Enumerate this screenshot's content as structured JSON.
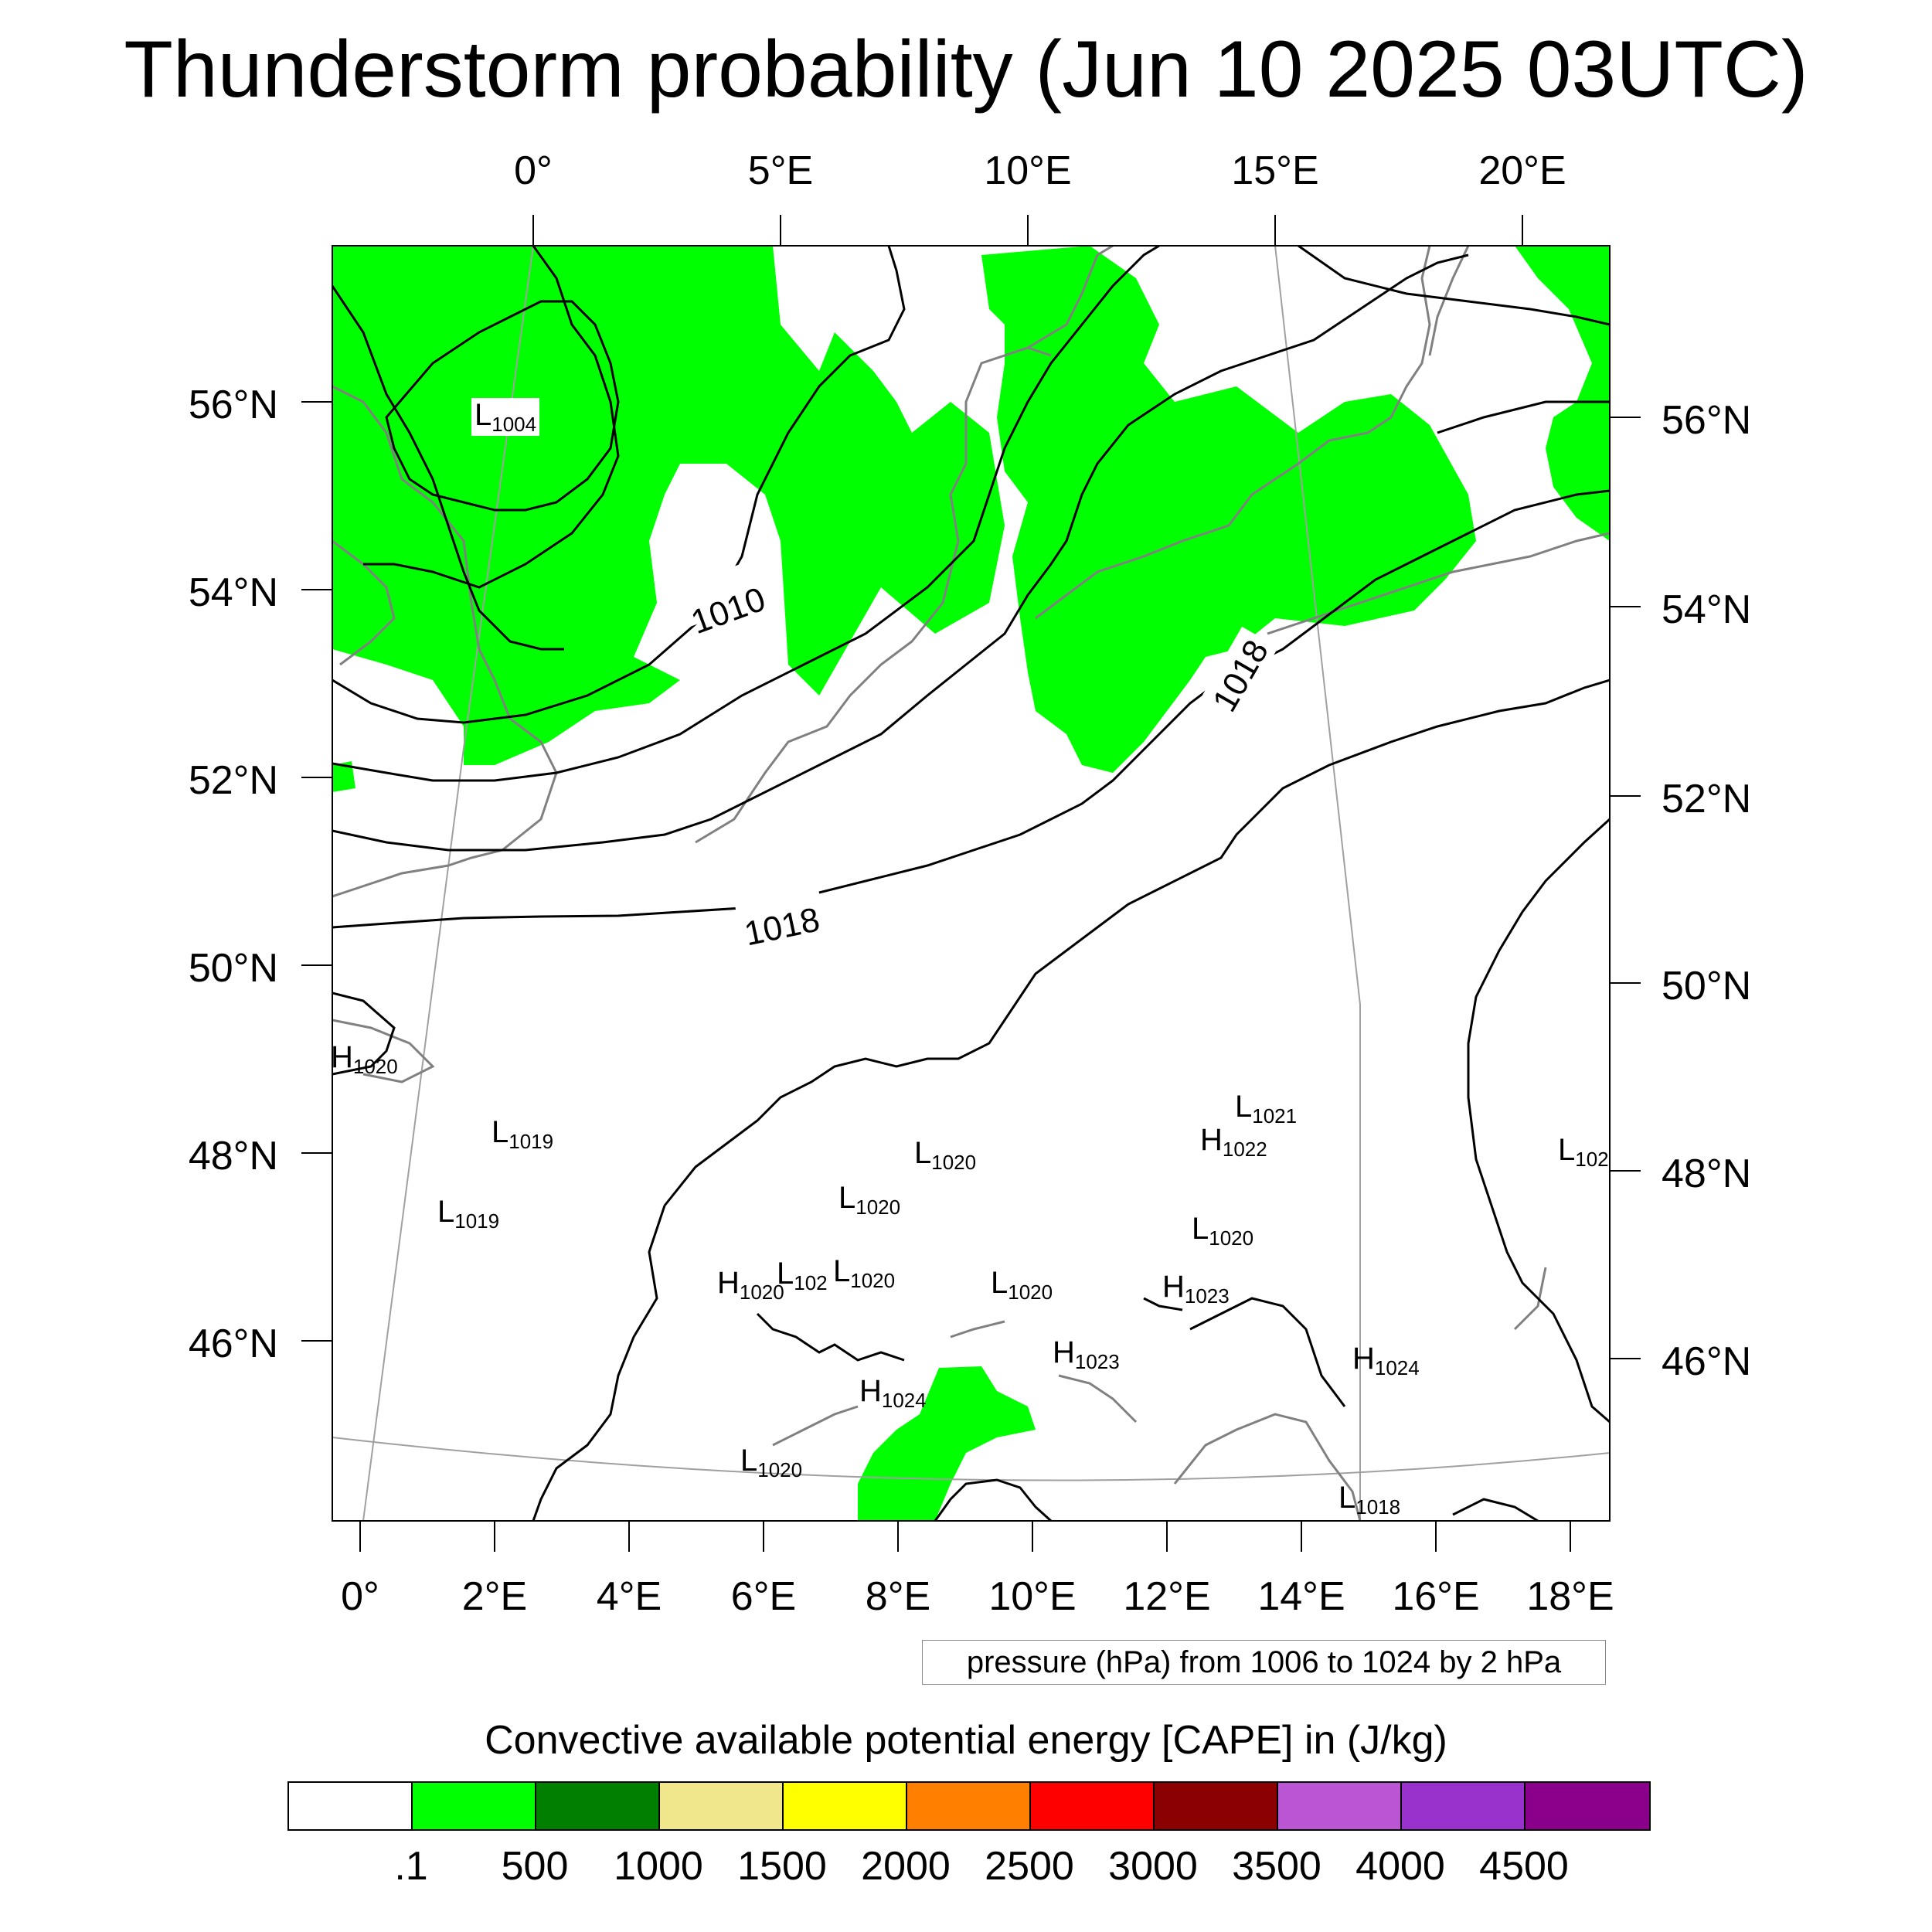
{
  "title": "Thunderstorm probability (Jun 10 2025 03UTC)",
  "map": {
    "top_lon_labels": [
      "0°",
      "5°E",
      "10°E",
      "15°E",
      "20°E"
    ],
    "bottom_lon_labels": [
      "0°",
      "2°E",
      "4°E",
      "6°E",
      "8°E",
      "10°E",
      "12°E",
      "14°E",
      "16°E",
      "18°E"
    ],
    "left_lat_labels": [
      "56°N",
      "54°N",
      "52°N",
      "50°N",
      "48°N",
      "46°N"
    ],
    "right_lat_labels": [
      "56°N",
      "54°N",
      "52°N",
      "50°N",
      "48°N",
      "46°N"
    ],
    "isobar_labels": [
      "1010",
      "1018",
      "1018"
    ],
    "pressure_systems": [
      {
        "type": "L",
        "value": "1004"
      },
      {
        "type": "H",
        "value": "1020"
      },
      {
        "type": "L",
        "value": "1019"
      },
      {
        "type": "L",
        "value": "1019"
      },
      {
        "type": "L",
        "value": "1020"
      },
      {
        "type": "L",
        "value": "1020"
      },
      {
        "type": "H",
        "value": "1020"
      },
      {
        "type": "L",
        "value": "102"
      },
      {
        "type": "L",
        "value": "1020"
      },
      {
        "type": "L",
        "value": "1020"
      },
      {
        "type": "H",
        "value": "1023"
      },
      {
        "type": "H",
        "value": "1024"
      },
      {
        "type": "L",
        "value": "1020"
      },
      {
        "type": "L",
        "value": "1021"
      },
      {
        "type": "H",
        "value": "1022"
      },
      {
        "type": "L",
        "value": "1020"
      },
      {
        "type": "H",
        "value": "1023"
      },
      {
        "type": "H",
        "value": "1024"
      },
      {
        "type": "L",
        "value": "1018"
      },
      {
        "type": "L",
        "value": "102"
      }
    ],
    "colors": {
      "cape_fill": "#00ff00",
      "isobar": "#000000",
      "coastline": "#808080"
    }
  },
  "caption": "pressure (hPa) from 1006 to 1024 by 2 hPa",
  "legend": {
    "title": "Convective available potential energy [CAPE] in (J/kg)",
    "colors": [
      "#ffffff",
      "#00ff00",
      "#007f00",
      "#f0e68c",
      "#ffff00",
      "#ff8000",
      "#ff0000",
      "#8b0000",
      "#ba55d3",
      "#9932cc",
      "#8b008b"
    ],
    "ticks": [
      ".1",
      "500",
      "1000",
      "1500",
      "2000",
      "2500",
      "3000",
      "3500",
      "4000",
      "4500"
    ]
  }
}
